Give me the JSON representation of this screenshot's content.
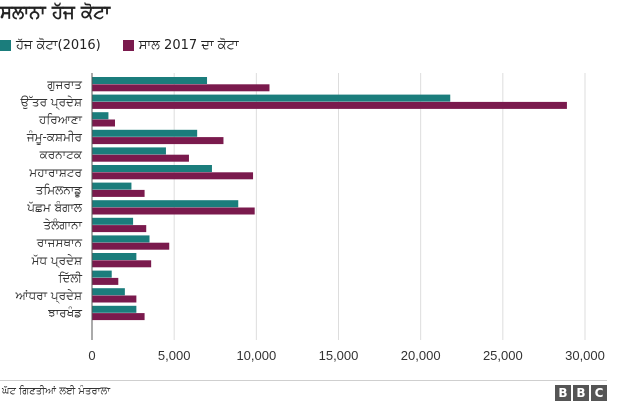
{
  "chart_data": {
    "type": "bar",
    "orientation": "horizontal",
    "title": "ਸਲਾਨਾ ਹੱਜ ਕੋਟਾ",
    "categories": [
      "ਗੁਜਰਾਤ",
      "ਉੱਤਰ ਪ੍ਰਦੇਸ਼",
      "ਹਰਿਆਣਾ",
      "ਜੰਮੂ-ਕਸ਼ਮੀਰ",
      "ਕਰਨਾਟਕ",
      "ਮਹਾਰਾਸ਼ਟਰ",
      "ਤਮਿਲਨਾਡੂ",
      "ਪੱਛਮ ਬੰਗਾਲ",
      "ਤੇਲੰਗਾਨਾ",
      "ਰਾਜਸਥਾਨ",
      "ਮੱਧ ਪ੍ਰਦੇਸ਼",
      "ਦਿੱਲੀ",
      "ਆਂਧਰਾ ਪ੍ਰਦੇਸ਼",
      "ਝਾਰਖੰਡ"
    ],
    "series": [
      {
        "name": "ਹੱਜ ਕੋਟਾ(2016)",
        "color": "#1b7d7c",
        "values": [
          7000,
          21800,
          1000,
          6400,
          4500,
          7300,
          2400,
          8900,
          2500,
          3500,
          2700,
          1200,
          2000,
          2700
        ]
      },
      {
        "name": "ਸਾਲ 2017 ਦਾ ਕੋਟਾ",
        "color": "#7a1a4d",
        "values": [
          10800,
          28900,
          1400,
          8000,
          5900,
          9800,
          3200,
          9900,
          3300,
          4700,
          3600,
          1600,
          2700,
          3200
        ]
      }
    ],
    "xlim": [
      0,
      30000
    ],
    "xticks": [
      "0",
      "5,000",
      "10,000",
      "15,000",
      "20,000",
      "25,000",
      "30,000"
    ],
    "xtick_values": [
      0,
      5000,
      10000,
      15000,
      20000,
      25000,
      30000
    ],
    "grid": true,
    "legend": "top-left"
  },
  "footer": {
    "source": "ਘੱਟ ਗਿਣਤੀਆਂ ਲਈ ਮੰਤਰਾਲਾ",
    "logo": [
      "B",
      "B",
      "C"
    ]
  }
}
